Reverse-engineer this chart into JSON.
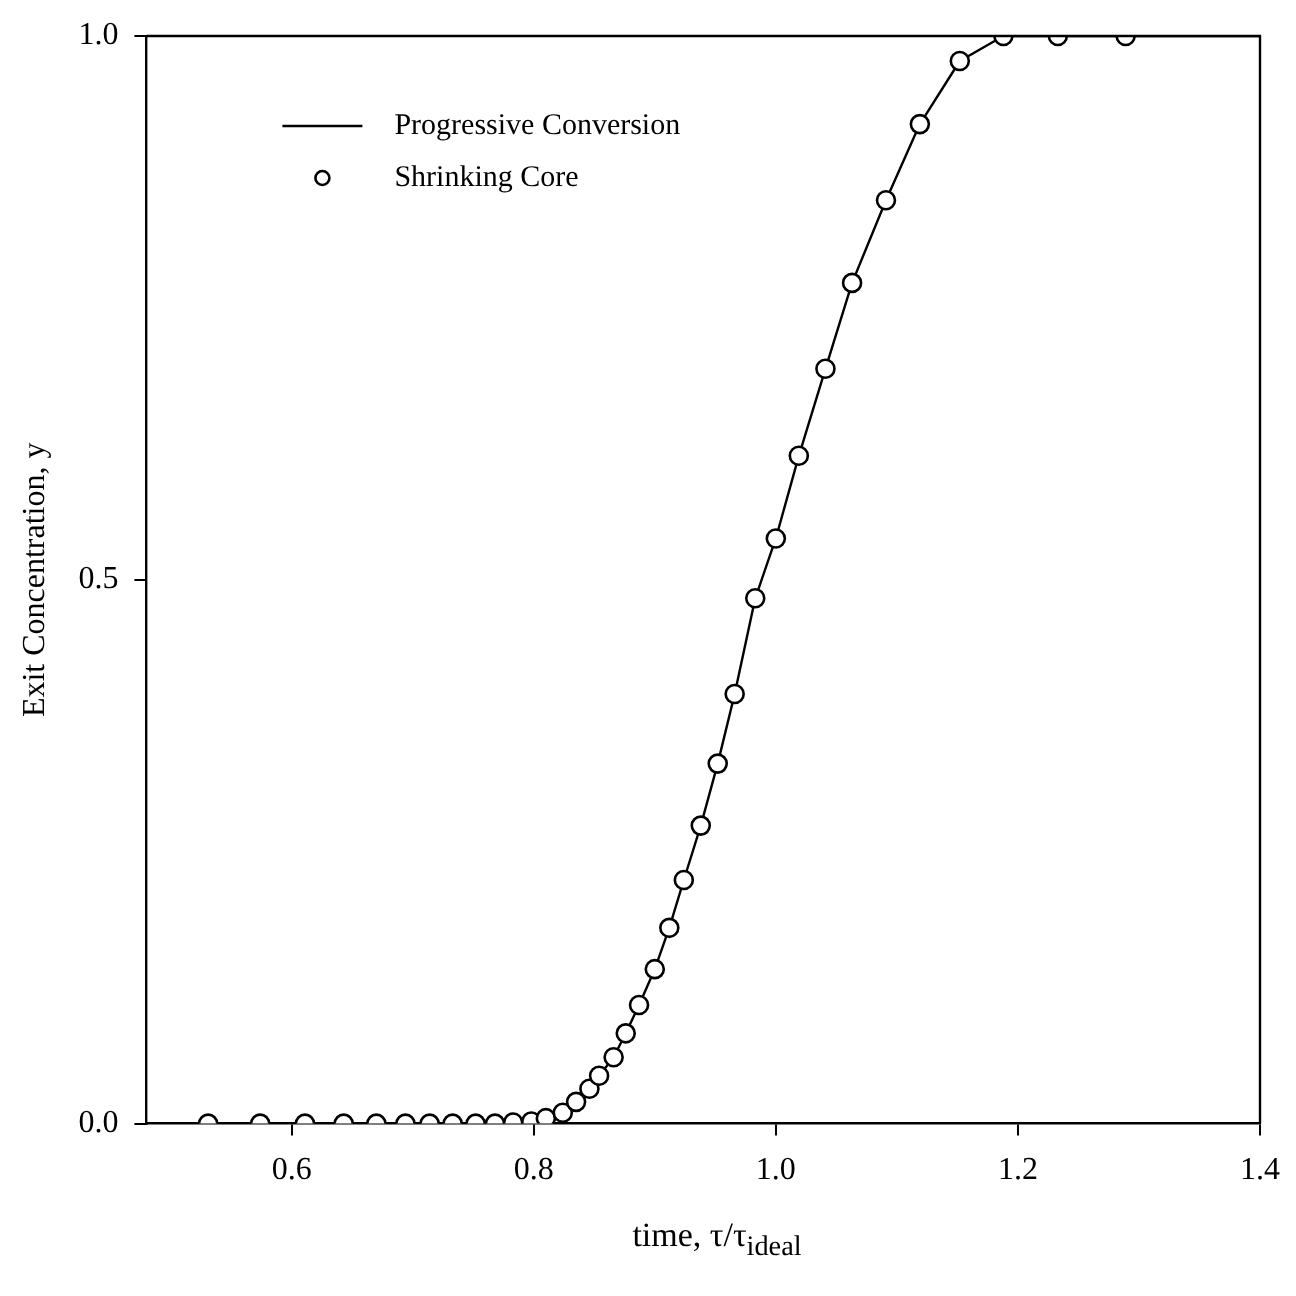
{
  "chart_data": {
    "type": "scatter",
    "xlabel": "time, τ/τ$_{ideal}$",
    "ylabel": "Exit Concentration, y",
    "xlim": [
      0.48,
      1.4
    ],
    "ylim": [
      0,
      1
    ],
    "xticks": [
      {
        "value": 0.6,
        "label": "0.6"
      },
      {
        "value": 0.8,
        "label": "0.8"
      },
      {
        "value": 1.0,
        "label": "1.0"
      },
      {
        "value": 1.2,
        "label": "1.2"
      },
      {
        "value": 1.4,
        "label": "1.4"
      }
    ],
    "yticks": [
      {
        "value": 0,
        "label": "0.0"
      },
      {
        "value": 0.5,
        "label": "0.5"
      },
      {
        "value": 1,
        "label": "1.0"
      }
    ],
    "grid": false,
    "legend": "top left",
    "series": [
      {
        "name": "Progressive Conversion",
        "type": "line",
        "marker": "none",
        "line_style": "solid",
        "color": "#000000",
        "x": [
          0.48,
          0.531,
          0.611,
          0.67,
          0.714,
          0.752,
          0.783,
          0.798,
          0.81,
          0.824,
          0.835,
          0.846,
          0.854,
          0.866,
          0.876,
          0.887,
          0.9,
          0.912,
          0.924,
          0.938,
          0.952,
          0.966,
          0.983,
          1.0,
          1.019,
          1.041,
          1.063,
          1.091,
          1.119,
          1.152,
          1.188,
          1.233,
          1.289,
          1.4
        ],
        "values": [
          0,
          0,
          0,
          0,
          0,
          0,
          0.001,
          0.002,
          0.005,
          0.01,
          0.02,
          0.032,
          0.044,
          0.061,
          0.083,
          0.109,
          0.142,
          0.18,
          0.224,
          0.274,
          0.331,
          0.395,
          0.483,
          0.538,
          0.614,
          0.694,
          0.773,
          0.849,
          0.919,
          0.977,
          1,
          1,
          1,
          1
        ]
      },
      {
        "name": "Shrinking Core",
        "type": "scatter",
        "marker": "circle",
        "color": "#000000",
        "x": [
          0.531,
          0.574,
          0.611,
          0.643,
          0.67,
          0.694,
          0.714,
          0.733,
          0.752,
          0.768,
          0.783,
          0.798,
          0.81,
          0.824,
          0.835,
          0.846,
          0.854,
          0.866,
          0.876,
          0.887,
          0.9,
          0.912,
          0.924,
          0.938,
          0.952,
          0.966,
          0.983,
          1.0,
          1.019,
          1.041,
          1.063,
          1.091,
          1.119,
          1.152,
          1.188,
          1.233,
          1.289
        ],
        "values": [
          0,
          0,
          0,
          0,
          0,
          0,
          0,
          0,
          0,
          0,
          0.001,
          0.002,
          0.005,
          0.01,
          0.02,
          0.032,
          0.044,
          0.061,
          0.083,
          0.109,
          0.142,
          0.18,
          0.224,
          0.274,
          0.331,
          0.395,
          0.483,
          0.538,
          0.614,
          0.694,
          0.773,
          0.849,
          0.919,
          0.977,
          1,
          1,
          1
        ]
      }
    ]
  }
}
